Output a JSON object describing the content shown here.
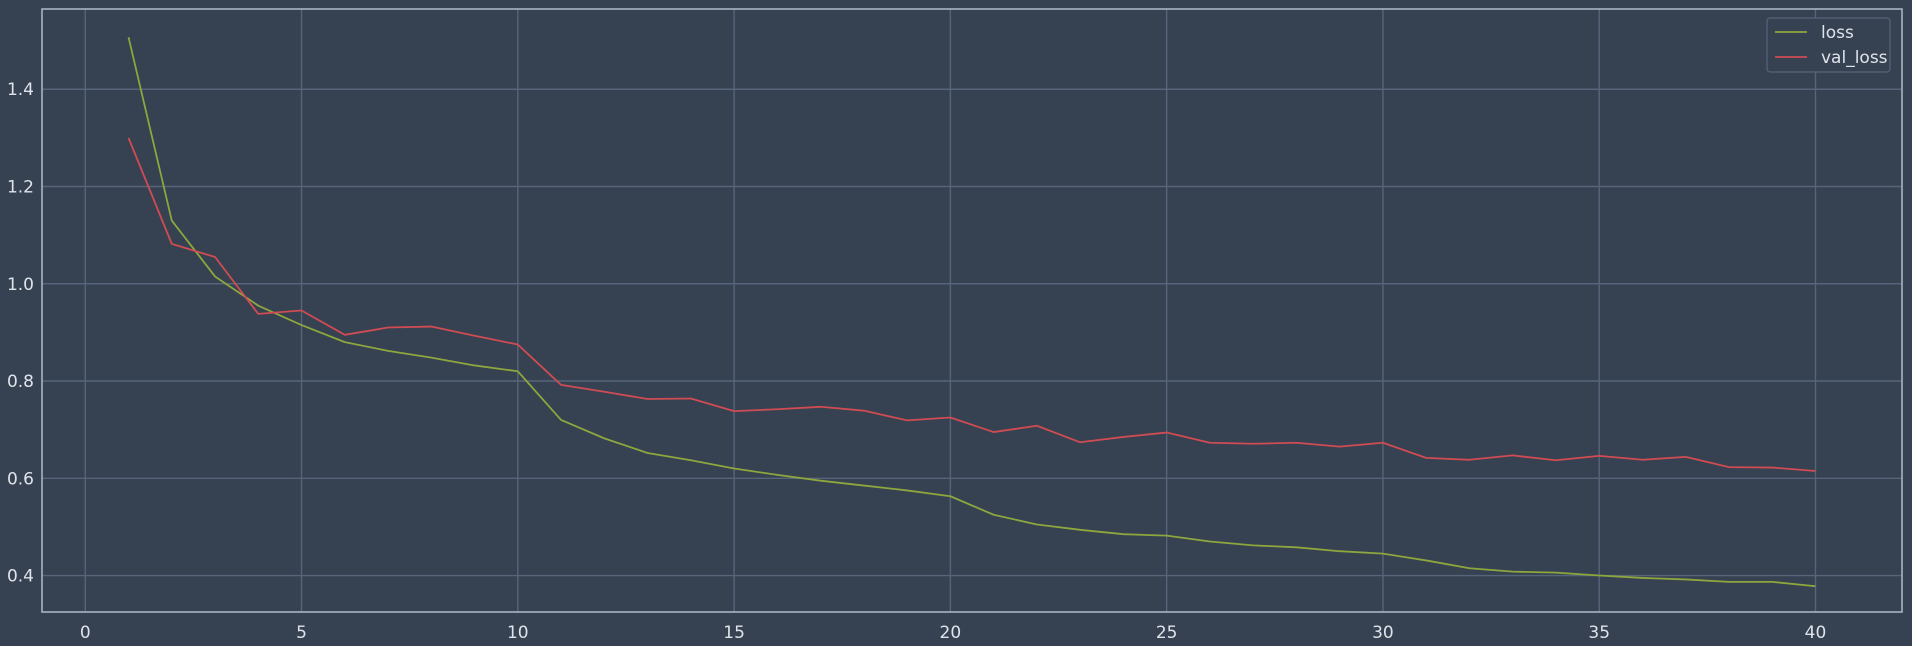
{
  "chart_data": {
    "type": "line",
    "title": "",
    "xlabel": "",
    "ylabel": "",
    "xlim": [
      -1,
      42
    ],
    "ylim": [
      0.325,
      1.565
    ],
    "x_ticks": [
      0,
      5,
      10,
      15,
      20,
      25,
      30,
      35,
      40
    ],
    "y_ticks": [
      0.4,
      0.6,
      0.8,
      1.0,
      1.2,
      1.4
    ],
    "x_tick_labels": [
      "0",
      "5",
      "10",
      "15",
      "20",
      "25",
      "30",
      "35",
      "40"
    ],
    "y_tick_labels": [
      "0.4",
      "0.6",
      "0.8",
      "1.0",
      "1.2",
      "1.4"
    ],
    "grid": true,
    "legend_position": "top-right",
    "background_color": "#364152",
    "grid_color": "#56657a",
    "x": [
      1,
      2,
      3,
      4,
      5,
      6,
      7,
      8,
      9,
      10,
      11,
      12,
      13,
      14,
      15,
      16,
      17,
      18,
      19,
      20,
      21,
      22,
      23,
      24,
      25,
      26,
      27,
      28,
      29,
      30,
      31,
      32,
      33,
      34,
      35,
      36,
      37,
      38,
      39,
      40
    ],
    "series": [
      {
        "name": "loss",
        "color": "#8da63d",
        "values": [
          1.507,
          1.13,
          1.015,
          0.955,
          0.915,
          0.88,
          0.862,
          0.848,
          0.832,
          0.82,
          0.72,
          0.682,
          0.652,
          0.637,
          0.62,
          0.607,
          0.595,
          0.585,
          0.575,
          0.563,
          0.525,
          0.505,
          0.494,
          0.485,
          0.482,
          0.47,
          0.462,
          0.458,
          0.45,
          0.445,
          0.431,
          0.415,
          0.408,
          0.406,
          0.4,
          0.395,
          0.392,
          0.387,
          0.387,
          0.378
        ]
      },
      {
        "name": "val_loss",
        "color": "#cf4c52",
        "values": [
          1.3,
          1.082,
          1.055,
          0.938,
          0.945,
          0.895,
          0.91,
          0.912,
          0.893,
          0.875,
          0.792,
          0.778,
          0.763,
          0.764,
          0.738,
          0.742,
          0.747,
          0.739,
          0.719,
          0.725,
          0.695,
          0.708,
          0.674,
          0.685,
          0.694,
          0.673,
          0.671,
          0.673,
          0.665,
          0.673,
          0.642,
          0.638,
          0.647,
          0.637,
          0.646,
          0.638,
          0.644,
          0.623,
          0.622,
          0.615
        ]
      }
    ]
  }
}
